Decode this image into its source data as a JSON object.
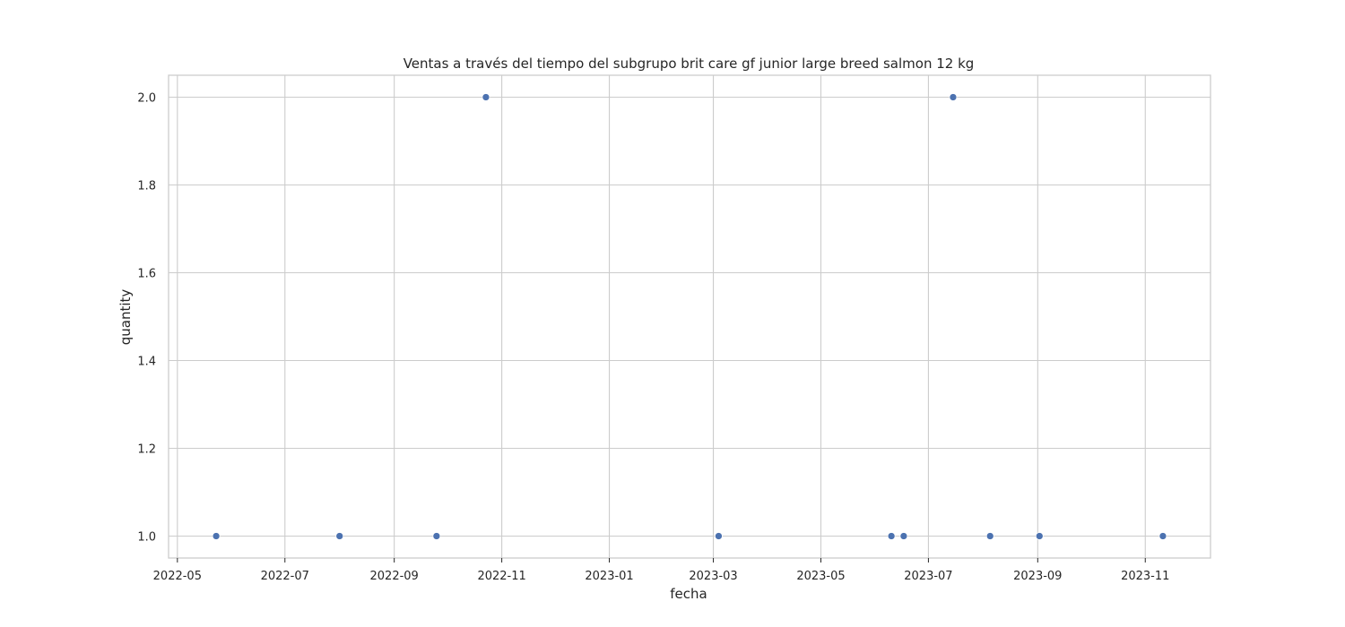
{
  "chart_data": {
    "type": "scatter",
    "title": "Ventas a través del tiempo del subgrupo brit care gf junior large breed salmon  12 kg",
    "xlabel": "fecha",
    "ylabel": "quantity",
    "x_tick_labels": [
      "2022-05",
      "2022-07",
      "2022-09",
      "2022-11",
      "2023-01",
      "2023-03",
      "2023-05",
      "2023-07",
      "2023-09",
      "2023-11"
    ],
    "y_tick_labels": [
      "1.0",
      "1.2",
      "1.4",
      "1.6",
      "1.8",
      "2.0"
    ],
    "y_ticks": [
      1.0,
      1.2,
      1.4,
      1.6,
      1.8,
      2.0
    ],
    "x_ticks": [
      "2022-05-01",
      "2022-07-01",
      "2022-09-01",
      "2022-11-01",
      "2023-01-01",
      "2023-03-01",
      "2023-05-01",
      "2023-07-01",
      "2023-09-01",
      "2023-11-01"
    ],
    "xlim": [
      "2022-04-26",
      "2023-12-08"
    ],
    "ylim": [
      0.95,
      2.05
    ],
    "grid": true,
    "marker_color": "#4c72b0",
    "points": [
      {
        "x": "2022-05-23",
        "y": 1
      },
      {
        "x": "2022-08-01",
        "y": 1
      },
      {
        "x": "2022-09-25",
        "y": 1
      },
      {
        "x": "2022-10-23",
        "y": 2
      },
      {
        "x": "2023-03-04",
        "y": 1
      },
      {
        "x": "2023-06-10",
        "y": 1
      },
      {
        "x": "2023-06-17",
        "y": 1
      },
      {
        "x": "2023-07-15",
        "y": 2
      },
      {
        "x": "2023-08-05",
        "y": 1
      },
      {
        "x": "2023-09-02",
        "y": 1
      },
      {
        "x": "2023-11-11",
        "y": 1
      }
    ]
  }
}
